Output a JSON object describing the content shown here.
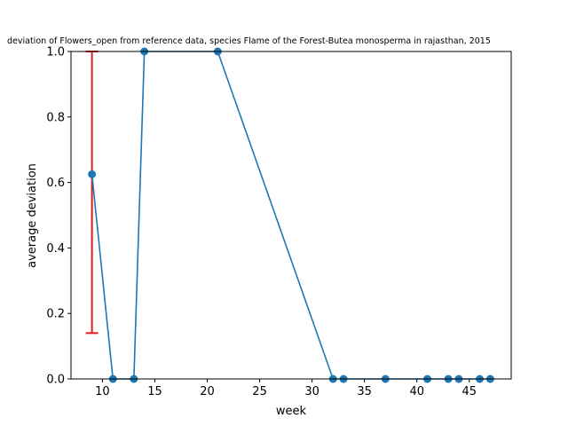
{
  "chart_data": {
    "type": "line",
    "title": "deviation of Flowers_open from reference data, species Flame of the Forest-Butea monosperma in rajasthan, 2015",
    "xlabel": "week",
    "ylabel": "average deviation",
    "xlim": [
      7,
      49
    ],
    "ylim": [
      0,
      1
    ],
    "xticks": [
      10,
      15,
      20,
      25,
      30,
      35,
      40,
      45
    ],
    "yticks": [
      0.0,
      0.2,
      0.4,
      0.6,
      0.8,
      1.0
    ],
    "xtick_labels": [
      "10",
      "15",
      "20",
      "25",
      "30",
      "35",
      "40",
      "45"
    ],
    "ytick_labels": [
      "0.0",
      "0.2",
      "0.4",
      "0.6",
      "0.8",
      "1.0"
    ],
    "series": [
      {
        "color": "#1f77b4",
        "x": [
          9,
          11,
          13,
          14,
          21,
          32,
          33,
          37,
          41,
          43,
          44,
          46,
          47
        ],
        "y": [
          0.625,
          0,
          0,
          1,
          1,
          0,
          0,
          0,
          0,
          0,
          0,
          0,
          0
        ]
      }
    ],
    "error_bar": {
      "x": 9,
      "lower": 0.14,
      "upper": 1.0,
      "color": "#e31a1c"
    },
    "grid": false,
    "legend": "none"
  }
}
